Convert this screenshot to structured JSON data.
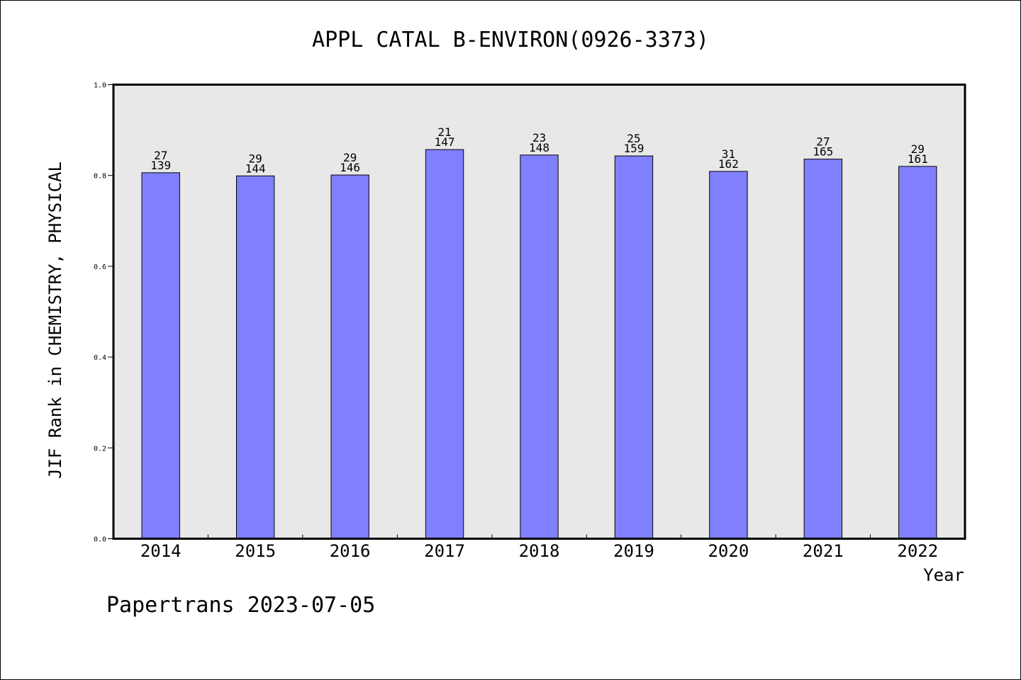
{
  "chart_data": {
    "type": "bar",
    "title": "APPL CATAL B-ENVIRON(0926-3373)",
    "xlabel": "Year",
    "ylabel": "JIF Rank in CHEMISTRY, PHYSICAL",
    "ylim": [
      0,
      1.0
    ],
    "yticks": [
      "0.0",
      "0.2",
      "0.4",
      "0.6",
      "0.8",
      "1.0"
    ],
    "categories": [
      "2014",
      "2015",
      "2016",
      "2017",
      "2018",
      "2019",
      "2020",
      "2021",
      "2022"
    ],
    "values": [
      0.806,
      0.799,
      0.801,
      0.857,
      0.845,
      0.843,
      0.809,
      0.836,
      0.82
    ],
    "rank_labels": [
      "27",
      "29",
      "29",
      "21",
      "23",
      "25",
      "31",
      "27",
      "29"
    ],
    "total_labels": [
      "139",
      "144",
      "146",
      "147",
      "148",
      "159",
      "162",
      "165",
      "161"
    ],
    "grid": false,
    "bar_color": "#8080ff",
    "plot_background": "#e8e8e8"
  },
  "footer": "Papertrans 2023-07-05"
}
